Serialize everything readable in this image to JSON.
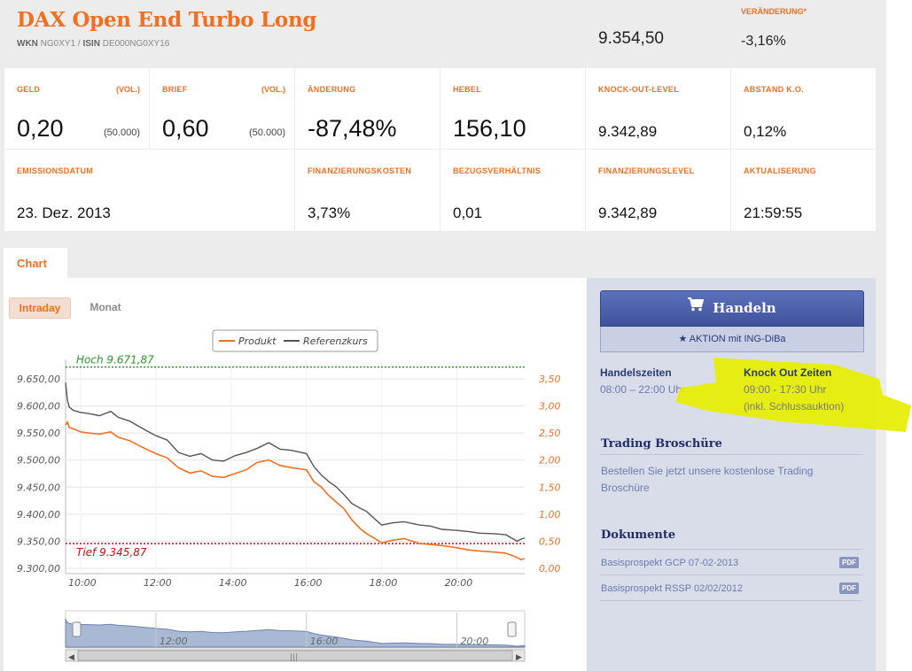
{
  "header": {
    "title": "DAX Open End Turbo Long",
    "wkn_label": "WKN",
    "wkn": "NG0XY1",
    "isin_label": "ISIN",
    "isin": "DE000NG0XY16",
    "kurs": "9.354,50",
    "veraenderung_label": "VERÄNDERUNG*",
    "veraenderung": "-3,16%"
  },
  "quotes": {
    "geld_label": "GELD",
    "geld_vol_label": "(VOL.)",
    "geld": "0,20",
    "geld_vol": "(50.000)",
    "brief_label": "BRIEF",
    "brief_vol_label": "(VOL.)",
    "brief": "0,60",
    "brief_vol": "(50.000)",
    "aenderung_label": "ÄNDERUNG",
    "aenderung": "-87,48%",
    "hebel_label": "HEBEL",
    "hebel": "156,10",
    "ko_label": "KNOCK-OUT-LEVEL",
    "ko": "9.342,89",
    "abstand_label": "ABSTAND K.O.",
    "abstand": "0,12%",
    "emission_label": "EMISSIONSDATUM",
    "emission": "23. Dez. 2013",
    "finkosten_label": "FINANZIERUNGSKOSTEN",
    "finkosten": "3,73%",
    "bezug_label": "BEZUGSVERHÄLTNIS",
    "bezug": "0,01",
    "finlevel_label": "FINANZIERUNGSLEVEL",
    "finlevel": "9.342,89",
    "aktual_label": "AKTUALISERUNG",
    "aktual": "21:59:55"
  },
  "tabs": {
    "chart": "Chart",
    "intraday": "Intraday",
    "monat": "Monat"
  },
  "chart_data": {
    "type": "line",
    "legend": [
      "Produkt",
      "Referenzkurs"
    ],
    "x_ticks": [
      "10:00",
      "12:00",
      "14:00",
      "16:00",
      "18:00",
      "20:00"
    ],
    "y_left_ticks": [
      "9.650,00",
      "9.600,00",
      "9.550,00",
      "9.500,00",
      "9.450,00",
      "9.400,00",
      "9.350,00",
      "9.300,00"
    ],
    "y_right_ticks": [
      "3,50",
      "3,00",
      "2,50",
      "2,00",
      "1,50",
      "1,00",
      "0,50",
      "0,00"
    ],
    "ylim_left": [
      9300,
      9650
    ],
    "ylim_right": [
      0,
      3.5
    ],
    "xlim_hours": [
      9.6,
      21.8
    ],
    "hoch_label": "Hoch 9.671,87",
    "hoch": 9671.87,
    "tief_label": "Tief 9.345,87",
    "tief": 9345.87,
    "series": [
      {
        "name": "Referenzkurs",
        "x": [
          9.6,
          9.65,
          9.7,
          9.8,
          10.0,
          10.2,
          10.5,
          10.8,
          11.0,
          11.3,
          11.6,
          12.0,
          12.3,
          12.6,
          12.9,
          13.2,
          13.5,
          13.8,
          14.1,
          14.4,
          14.7,
          15.0,
          15.3,
          15.6,
          16.0,
          16.2,
          16.4,
          16.6,
          16.8,
          17.0,
          17.2,
          17.4,
          17.6,
          17.8,
          18.0,
          18.3,
          18.6,
          19.0,
          19.3,
          19.6,
          20.0,
          20.3,
          20.6,
          21.0,
          21.3,
          21.6,
          21.7,
          21.8
        ],
        "values": [
          9643,
          9610,
          9598,
          9592,
          9588,
          9586,
          9582,
          9590,
          9579,
          9572,
          9560,
          9545,
          9537,
          9514,
          9507,
          9512,
          9500,
          9498,
          9508,
          9514,
          9522,
          9532,
          9520,
          9518,
          9512,
          9488,
          9472,
          9460,
          9450,
          9436,
          9420,
          9412,
          9405,
          9392,
          9380,
          9384,
          9386,
          9380,
          9378,
          9372,
          9370,
          9368,
          9365,
          9364,
          9362,
          9350,
          9354,
          9356
        ]
      },
      {
        "name": "Produkt",
        "x": [
          9.6,
          9.65,
          9.7,
          9.8,
          10.0,
          10.2,
          10.5,
          10.8,
          11.0,
          11.3,
          11.6,
          12.0,
          12.3,
          12.6,
          12.9,
          13.2,
          13.5,
          13.8,
          14.1,
          14.4,
          14.7,
          15.0,
          15.3,
          15.6,
          16.0,
          16.2,
          16.4,
          16.6,
          16.8,
          17.0,
          17.2,
          17.4,
          17.6,
          17.8,
          18.0,
          18.3,
          18.6,
          19.0,
          19.3,
          19.6,
          20.0,
          20.3,
          20.6,
          21.0,
          21.3,
          21.6,
          21.7,
          21.8
        ],
        "values": [
          2.65,
          2.7,
          2.6,
          2.58,
          2.52,
          2.5,
          2.48,
          2.52,
          2.42,
          2.36,
          2.25,
          2.12,
          2.04,
          1.86,
          1.76,
          1.8,
          1.7,
          1.68,
          1.75,
          1.82,
          1.96,
          2.0,
          1.9,
          1.86,
          1.82,
          1.6,
          1.5,
          1.34,
          1.22,
          1.1,
          0.9,
          0.75,
          0.64,
          0.56,
          0.47,
          0.52,
          0.55,
          0.46,
          0.44,
          0.42,
          0.38,
          0.34,
          0.32,
          0.3,
          0.28,
          0.2,
          0.16,
          0.18
        ]
      }
    ],
    "navigator_ticks": [
      "12:00",
      "16:00",
      "20:00"
    ]
  },
  "sidebar": {
    "handeln": "Handeln",
    "aktion": "★ AKTION mit ING-DiBa",
    "handelszeiten_label": "Handelszeiten",
    "handelszeiten": "08:00 – 22:00 Uhr",
    "knockout_label": "Knock Out Zeiten",
    "knockout": "09:00 - 17:30 Uhr",
    "knockout_note": "(inkl. Schlussauktion)",
    "broschuere_title": "Trading Broschüre",
    "broschuere_text1": "Bestellen Sie jetzt unsere kostenlose Trading",
    "broschuere_text2": "Broschüre",
    "dokumente_title": "Dokumente",
    "doc1": "Basisprospekt GCP 07-02-2013",
    "doc2": "Basisprospekt RSSP 02/02/2012",
    "pdf": "PDF"
  },
  "colors": {
    "accent": "#f26f21",
    "gray_line": "#555555",
    "navy": "#3f539d",
    "highlight": "#e8f000"
  }
}
